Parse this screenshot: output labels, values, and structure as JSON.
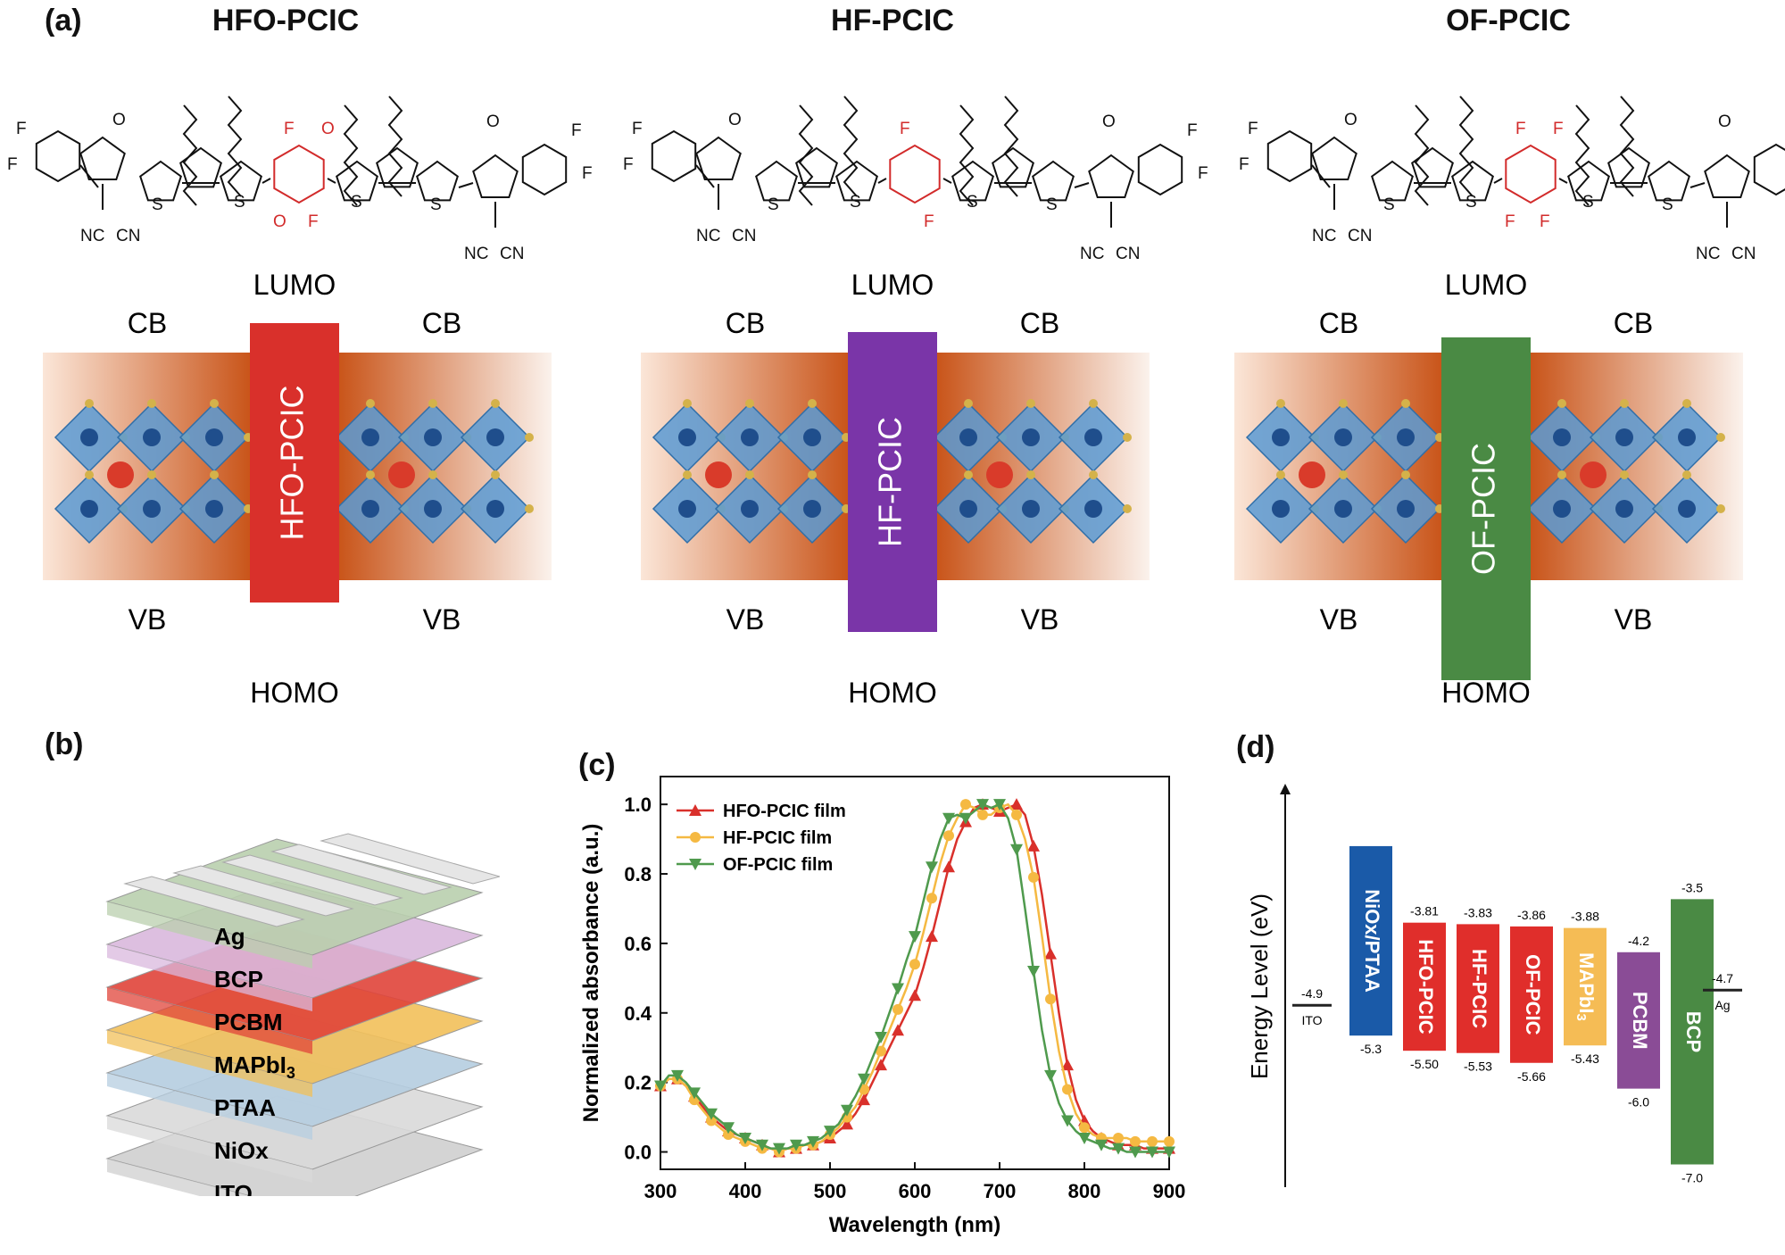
{
  "panel_labels": {
    "a": "(a)",
    "b": "(b)",
    "c": "(c)",
    "d": "(d)"
  },
  "molecules": [
    {
      "title": "HFO-PCIC",
      "core_substituents": [
        "F",
        "F",
        "O",
        "O"
      ],
      "core_color": "#d22b2b"
    },
    {
      "title": "HF-PCIC",
      "core_substituents": [
        "F",
        "F"
      ],
      "core_color": "#d22b2b"
    },
    {
      "title": "OF-PCIC",
      "core_substituents": [
        "F",
        "F",
        "F",
        "F"
      ],
      "core_color": "#d22b2b"
    }
  ],
  "structure_atoms": {
    "fluorine": "F",
    "sulfur": "S",
    "oxygen": "O",
    "cyano": "CN",
    "nc": "NC"
  },
  "energy_schemes": [
    {
      "lumo": "LUMO",
      "homo": "HOMO",
      "cb": "CB",
      "vb": "VB",
      "bar_label": "HFO-PCIC",
      "bar_color": "#d9302b"
    },
    {
      "lumo": "LUMO",
      "homo": "HOMO",
      "cb": "CB",
      "vb": "VB",
      "bar_label": "HF-PCIC",
      "bar_color": "#7a35a8"
    },
    {
      "lumo": "LUMO",
      "homo": "HOMO",
      "cb": "CB",
      "vb": "VB",
      "bar_label": "OF-PCIC",
      "bar_color": "#4a8a44"
    }
  ],
  "device_stack": {
    "layers": [
      {
        "name": "Ag",
        "color": "#b9cfae"
      },
      {
        "name": "BCP",
        "color": "#d9b8dd"
      },
      {
        "name": "PCBM",
        "color": "#e0443a"
      },
      {
        "name": "MAPbI",
        "sub": "3",
        "color": "#f2c05a"
      },
      {
        "name": "PTAA",
        "color": "#b5cde0"
      },
      {
        "name": "NiOx",
        "color": "#d9d9d9"
      },
      {
        "name": "ITO",
        "color": "#cfcfcf"
      }
    ]
  },
  "chart_data": {
    "type": "line",
    "xlabel": "Wavelength (nm)",
    "ylabel": "Normalized absorbance (a.u.)",
    "xlim": [
      300,
      900
    ],
    "ylim": [
      -0.05,
      1.08
    ],
    "xticks": [
      "300",
      "400",
      "500",
      "600",
      "700",
      "800",
      "900"
    ],
    "yticks": [
      "0.0",
      "0.2",
      "0.4",
      "0.6",
      "0.8",
      "1.0"
    ],
    "legend_position": "top-left",
    "series": [
      {
        "name": "HFO-PCIC film",
        "color": "#d9302b",
        "marker": "triangle-up",
        "x": [
          300,
          310,
          320,
          330,
          340,
          350,
          360,
          370,
          380,
          390,
          400,
          410,
          420,
          430,
          440,
          450,
          460,
          470,
          480,
          490,
          500,
          510,
          520,
          530,
          540,
          550,
          560,
          570,
          580,
          590,
          600,
          610,
          620,
          630,
          640,
          650,
          660,
          670,
          680,
          690,
          700,
          710,
          720,
          730,
          740,
          750,
          760,
          770,
          780,
          790,
          800,
          810,
          820,
          830,
          840,
          850,
          860,
          870,
          880,
          890,
          900
        ],
        "y": [
          0.19,
          0.21,
          0.21,
          0.19,
          0.16,
          0.13,
          0.1,
          0.08,
          0.06,
          0.05,
          0.04,
          0.03,
          0.02,
          0.01,
          0.0,
          0.01,
          0.01,
          0.02,
          0.02,
          0.03,
          0.04,
          0.06,
          0.08,
          0.11,
          0.15,
          0.2,
          0.25,
          0.3,
          0.35,
          0.4,
          0.45,
          0.53,
          0.62,
          0.72,
          0.82,
          0.9,
          0.95,
          0.99,
          1.0,
          0.99,
          0.98,
          0.99,
          1.0,
          0.97,
          0.88,
          0.74,
          0.57,
          0.4,
          0.25,
          0.15,
          0.09,
          0.06,
          0.04,
          0.03,
          0.02,
          0.02,
          0.02,
          0.01,
          0.01,
          0.01,
          0.01
        ]
      },
      {
        "name": "HF-PCIC film",
        "color": "#f5b942",
        "marker": "circle",
        "x": [
          300,
          310,
          320,
          330,
          340,
          350,
          360,
          370,
          380,
          390,
          400,
          410,
          420,
          430,
          440,
          450,
          460,
          470,
          480,
          490,
          500,
          510,
          520,
          530,
          540,
          550,
          560,
          570,
          580,
          590,
          600,
          610,
          620,
          630,
          640,
          650,
          660,
          670,
          680,
          690,
          700,
          710,
          720,
          730,
          740,
          750,
          760,
          770,
          780,
          790,
          800,
          810,
          820,
          830,
          840,
          850,
          860,
          870,
          880,
          890,
          900
        ],
        "y": [
          0.19,
          0.21,
          0.21,
          0.19,
          0.15,
          0.12,
          0.09,
          0.07,
          0.05,
          0.04,
          0.03,
          0.02,
          0.01,
          0.01,
          0.0,
          0.01,
          0.01,
          0.02,
          0.02,
          0.03,
          0.05,
          0.07,
          0.1,
          0.13,
          0.18,
          0.23,
          0.29,
          0.35,
          0.41,
          0.47,
          0.54,
          0.63,
          0.73,
          0.83,
          0.91,
          0.96,
          1.0,
          0.99,
          0.97,
          0.97,
          0.99,
          1.0,
          0.97,
          0.9,
          0.79,
          0.62,
          0.44,
          0.29,
          0.18,
          0.11,
          0.07,
          0.05,
          0.04,
          0.04,
          0.04,
          0.04,
          0.03,
          0.03,
          0.03,
          0.03,
          0.03
        ]
      },
      {
        "name": "OF-PCIC film",
        "color": "#4f9a4d",
        "marker": "triangle-down",
        "x": [
          300,
          310,
          320,
          330,
          340,
          350,
          360,
          370,
          380,
          390,
          400,
          410,
          420,
          430,
          440,
          450,
          460,
          470,
          480,
          490,
          500,
          510,
          520,
          530,
          540,
          550,
          560,
          570,
          580,
          590,
          600,
          610,
          620,
          630,
          640,
          650,
          660,
          670,
          680,
          690,
          700,
          710,
          720,
          730,
          740,
          750,
          760,
          770,
          780,
          790,
          800,
          810,
          820,
          830,
          840,
          850,
          860,
          870,
          880,
          890,
          900
        ],
        "y": [
          0.19,
          0.22,
          0.22,
          0.2,
          0.17,
          0.14,
          0.11,
          0.09,
          0.07,
          0.05,
          0.04,
          0.03,
          0.02,
          0.01,
          0.01,
          0.01,
          0.02,
          0.02,
          0.03,
          0.04,
          0.06,
          0.08,
          0.12,
          0.16,
          0.21,
          0.27,
          0.33,
          0.4,
          0.47,
          0.55,
          0.62,
          0.72,
          0.82,
          0.9,
          0.96,
          0.97,
          0.96,
          0.98,
          1.0,
          0.99,
          1.0,
          0.96,
          0.87,
          0.7,
          0.52,
          0.35,
          0.22,
          0.14,
          0.09,
          0.06,
          0.04,
          0.03,
          0.02,
          0.01,
          0.01,
          0.0,
          0.0,
          0.0,
          0.0,
          0.0,
          0.0
        ]
      }
    ]
  },
  "energy_diagram": {
    "ylabel": "Energy Level (eV)",
    "y_range": [
      -7.3,
      -2.0
    ],
    "items": [
      {
        "name": "ITO",
        "type": "line",
        "level": -4.9,
        "label": "-4.9",
        "color": "#222222"
      },
      {
        "name": "NiOx/PTAA",
        "type": "bar",
        "top": -2.8,
        "bottom": -5.3,
        "top_label": "",
        "bottom_label": "-5.3",
        "color": "#1a5aa8"
      },
      {
        "name": "HFO-PCIC",
        "type": "bar",
        "top": -3.81,
        "bottom": -5.5,
        "top_label": "-3.81",
        "bottom_label": "-5.50",
        "color": "#e02e2b"
      },
      {
        "name": "HF-PCIC",
        "type": "bar",
        "top": -3.83,
        "bottom": -5.53,
        "top_label": "-3.83",
        "bottom_label": "-5.53",
        "color": "#e02e2b"
      },
      {
        "name": "OF-PCIC",
        "type": "bar",
        "top": -3.86,
        "bottom": -5.66,
        "top_label": "-3.86",
        "bottom_label": "-5.66",
        "color": "#e02e2b"
      },
      {
        "name": "MAPbI3",
        "display": "MAPbI",
        "sub": "3",
        "type": "bar",
        "top": -3.88,
        "bottom": -5.43,
        "top_label": "-3.88",
        "bottom_label": "-5.43",
        "color": "#f5bc55"
      },
      {
        "name": "PCBM",
        "type": "bar",
        "top": -4.2,
        "bottom": -6.0,
        "top_label": "-4.2",
        "bottom_label": "-6.0",
        "color": "#8a4c96"
      },
      {
        "name": "BCP",
        "type": "bar",
        "top": -3.5,
        "bottom": -7.0,
        "top_label": "-3.5",
        "bottom_label": "-7.0",
        "color": "#4a8a44"
      },
      {
        "name": "Ag",
        "type": "line",
        "level": -4.7,
        "label": "-4.7",
        "color": "#222222"
      }
    ]
  }
}
